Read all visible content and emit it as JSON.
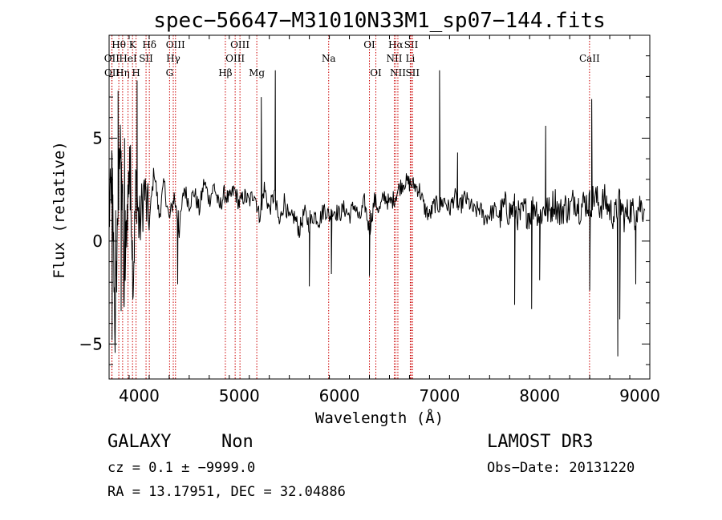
{
  "chart_data": {
    "type": "line",
    "title": "spec−56647−M31010N33M1_sp07−144.fits",
    "xlabel": "Wavelength (Å)",
    "ylabel": "Flux (relative)",
    "xlim": [
      3700,
      9100
    ],
    "ylim": [
      -6.7,
      10.0
    ],
    "x_ticks": [
      4000,
      5000,
      6000,
      7000,
      8000,
      9000
    ],
    "y_ticks": [
      -5,
      0,
      5
    ],
    "series": [
      {
        "name": "flux",
        "x": [
          3700,
          3730,
          3760,
          3790,
          3820,
          3850,
          3880,
          3910,
          3940,
          3970,
          4000,
          4050,
          4100,
          4150,
          4200,
          4250,
          4300,
          4350,
          4400,
          4450,
          4500,
          4550,
          4600,
          4650,
          4700,
          4750,
          4800,
          4850,
          4900,
          4950,
          5000,
          5050,
          5100,
          5150,
          5200,
          5250,
          5300,
          5350,
          5400,
          5450,
          5500,
          5550,
          5600,
          5650,
          5700,
          5750,
          5800,
          5850,
          5900,
          5950,
          6000,
          6050,
          6100,
          6150,
          6200,
          6250,
          6300,
          6350,
          6400,
          6450,
          6500,
          6550,
          6600,
          6650,
          6700,
          6750,
          6800,
          6850,
          6900,
          6950,
          7000,
          7050,
          7100,
          7150,
          7200,
          7250,
          7300,
          7350,
          7400,
          7450,
          7500,
          7550,
          7600,
          7650,
          7700,
          7750,
          7800,
          7850,
          7900,
          7950,
          8000,
          8050,
          8100,
          8150,
          8200,
          8250,
          8300,
          8350,
          8400,
          8450,
          8500,
          8550,
          8600,
          8650,
          8700,
          8750,
          8800,
          8850,
          8900,
          8950,
          9000,
          9050
        ],
        "y": [
          1.0,
          3.5,
          -4.5,
          2.0,
          5.5,
          -3.0,
          1.5,
          4.0,
          -2.0,
          3.0,
          0.5,
          2.5,
          0.8,
          3.5,
          1.2,
          2.8,
          1.0,
          2.2,
          0.5,
          2.6,
          1.8,
          2.4,
          1.5,
          2.9,
          2.0,
          2.7,
          1.6,
          2.3,
          2.0,
          2.5,
          1.8,
          2.2,
          1.9,
          2.4,
          1.2,
          2.6,
          1.5,
          2.3,
          0.8,
          2.0,
          1.0,
          1.2,
          0.5,
          1.4,
          0.8,
          1.3,
          1.0,
          1.6,
          1.2,
          1.5,
          1.3,
          1.6,
          1.2,
          1.8,
          1.0,
          1.9,
          0.5,
          2.0,
          1.5,
          2.2,
          1.8,
          2.1,
          2.6,
          2.9,
          2.8,
          2.7,
          2.5,
          1.6,
          1.2,
          1.8,
          1.7,
          2.0,
          1.5,
          2.2,
          1.6,
          2.1,
          1.8,
          1.4,
          1.6,
          1.1,
          1.3,
          1.5,
          1.2,
          1.7,
          1.4,
          1.6,
          1.1,
          1.5,
          1.3,
          1.8,
          1.2,
          1.6,
          1.4,
          2.0,
          1.3,
          1.7,
          1.5,
          2.1,
          1.6,
          1.9,
          1.8,
          2.2,
          1.7,
          2.0,
          1.5,
          1.2,
          1.9,
          1.1,
          1.6,
          1.3,
          1.8,
          1.5
        ]
      }
    ],
    "spikes": [
      {
        "x": 3730,
        "y": -4.8
      },
      {
        "x": 3760,
        "y": -5.2
      },
      {
        "x": 3790,
        "y": 7.3
      },
      {
        "x": 3820,
        "y": -3.4
      },
      {
        "x": 3855,
        "y": 5.0
      },
      {
        "x": 3905,
        "y": 4.6
      },
      {
        "x": 3980,
        "y": 7.8
      },
      {
        "x": 4385,
        "y": -2.1
      },
      {
        "x": 5220,
        "y": 7.0
      },
      {
        "x": 5360,
        "y": 8.3
      },
      {
        "x": 5700,
        "y": -2.2
      },
      {
        "x": 5920,
        "y": -1.6
      },
      {
        "x": 6300,
        "y": -1.7
      },
      {
        "x": 7000,
        "y": 8.3
      },
      {
        "x": 7180,
        "y": 4.3
      },
      {
        "x": 7750,
        "y": -3.1
      },
      {
        "x": 7920,
        "y": -3.3
      },
      {
        "x": 8000,
        "y": -1.9
      },
      {
        "x": 8060,
        "y": 5.6
      },
      {
        "x": 8500,
        "y": -2.4
      },
      {
        "x": 8520,
        "y": 6.9
      },
      {
        "x": 8780,
        "y": -5.6
      },
      {
        "x": 8800,
        "y": -3.8
      },
      {
        "x": 8960,
        "y": -2.1
      }
    ],
    "lines": [
      {
        "label": "Hθ",
        "x": 3797,
        "row": 1
      },
      {
        "label": "OII",
        "x": 3727,
        "row": 2
      },
      {
        "label": "OII",
        "x": 3729,
        "row": 3
      },
      {
        "label": "Hη",
        "x": 3835,
        "row": 3
      },
      {
        "label": "K",
        "x": 3934,
        "row": 1
      },
      {
        "label": "HeI",
        "x": 3889,
        "row": 2
      },
      {
        "label": "H",
        "x": 3969,
        "row": 3
      },
      {
        "label": "Hδ",
        "x": 4102,
        "row": 1
      },
      {
        "label": "SII",
        "x": 4069,
        "row": 2
      },
      {
        "label": "OIII",
        "x": 4363,
        "row": 1
      },
      {
        "label": "Hγ",
        "x": 4341,
        "row": 2
      },
      {
        "label": "G",
        "x": 4304,
        "row": 3
      },
      {
        "label": "OIII",
        "x": 5007,
        "row": 1
      },
      {
        "label": "OIII",
        "x": 4959,
        "row": 2
      },
      {
        "label": "Hβ",
        "x": 4861,
        "row": 3
      },
      {
        "label": "Mg",
        "x": 5175,
        "row": 3
      },
      {
        "label": "Na",
        "x": 5893,
        "row": 2
      },
      {
        "label": "OI",
        "x": 6300,
        "row": 1
      },
      {
        "label": "OI",
        "x": 6364,
        "row": 3
      },
      {
        "label": "Hα",
        "x": 6563,
        "row": 1
      },
      {
        "label": "SII",
        "x": 6717,
        "row": 1
      },
      {
        "label": "NII",
        "x": 6548,
        "row": 2
      },
      {
        "label": "Li",
        "x": 6708,
        "row": 2
      },
      {
        "label": "NII",
        "x": 6584,
        "row": 3
      },
      {
        "label": "SII",
        "x": 6731,
        "row": 3
      },
      {
        "label": "CaII",
        "x": 8498,
        "row": 2
      }
    ]
  },
  "info": {
    "object_class": "GALAXY",
    "subclass": "Non",
    "cz_text": "cz = 0.1 ± −9999.0",
    "coord_text": "RA =  13.17951, DEC =  32.04886",
    "survey": "LAMOST DR3",
    "obs_date_text": "Obs−Date: 20131220"
  }
}
